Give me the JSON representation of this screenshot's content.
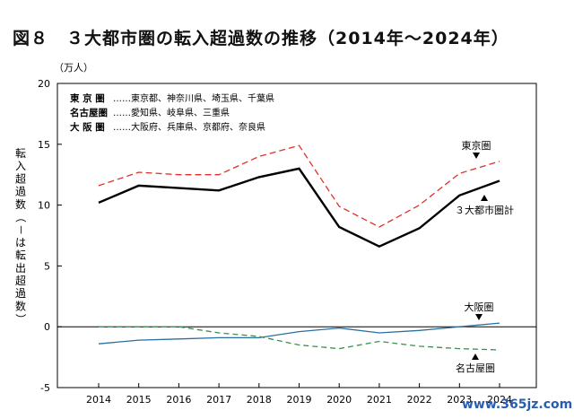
{
  "chart_data": {
    "type": "line",
    "title": "図８　３大都市圏の転入超過数の推移（2014年～2024年）",
    "unit_label": "（万人）",
    "ylabel": "転入超過数（－は転出超過数）",
    "ylim": [
      -5,
      20
    ],
    "yticks": [
      "20",
      "15",
      "10",
      "5",
      "0",
      "-5"
    ],
    "x": [
      "2014",
      "2015",
      "2016",
      "2017",
      "2018",
      "2019",
      "2020",
      "2021",
      "2022",
      "2023",
      "2024"
    ],
    "grid": false,
    "series": [
      {
        "name": "東京圏",
        "color": "#e0302a",
        "style": "dashed",
        "values": [
          11.6,
          12.7,
          12.5,
          12.5,
          14.0,
          14.9,
          9.9,
          8.2,
          10.0,
          12.6,
          13.6
        ]
      },
      {
        "name": "３大都市圏計",
        "color": "#000000",
        "style": "solid",
        "values": [
          10.2,
          11.6,
          11.4,
          11.2,
          12.3,
          13.0,
          8.2,
          6.6,
          8.1,
          10.8,
          12.0
        ]
      },
      {
        "name": "大阪圏",
        "color": "#2a6fa0",
        "style": "solid",
        "values": [
          -1.4,
          -1.1,
          -1.0,
          -0.9,
          -0.9,
          -0.4,
          -0.1,
          -0.5,
          -0.3,
          0.0,
          0.3
        ]
      },
      {
        "name": "名古屋圏",
        "color": "#3e8e4f",
        "style": "dashed",
        "values": [
          0.0,
          0.0,
          0.0,
          -0.5,
          -0.8,
          -1.5,
          -1.8,
          -1.2,
          -1.6,
          -1.8,
          -1.9
        ]
      }
    ],
    "legend": [
      {
        "bold": "東 京 圏",
        "rest": "……東京都、神奈川県、埼玉県、千葉県"
      },
      {
        "bold": "名古屋圏",
        "rest": "……愛知県、岐阜県、三重県"
      },
      {
        "bold": "大 阪 圏",
        "rest": "……大阪府、兵庫県、京都府、奈良県"
      }
    ],
    "annotations": {
      "tokyo": "東京圏",
      "total": "３大都市圏計",
      "osaka": "大阪圏",
      "nagoya": "名古屋圏"
    },
    "watermark": "www.365jz.com"
  }
}
